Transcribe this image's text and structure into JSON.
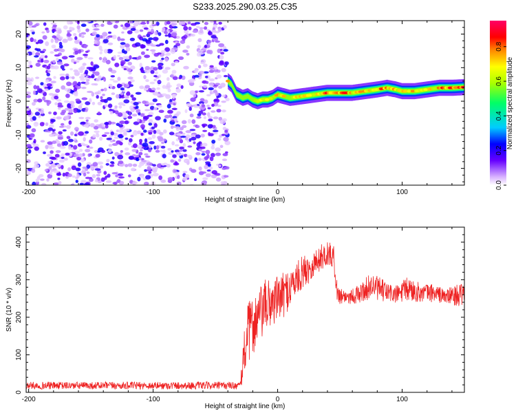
{
  "title": "S233.2025.290.03.25.C35",
  "chart_data": [
    {
      "type": "heatmap",
      "name": "spectrogram",
      "xlabel": "Height of straight line (km)",
      "ylabel": "Frequency (Hz)",
      "xlim": [
        -202,
        150
      ],
      "ylim": [
        -25,
        24
      ],
      "xticks": [
        -200,
        -100,
        0,
        100
      ],
      "xtick_labels": [
        "-200",
        "-100",
        "0",
        "100"
      ],
      "yticks": [
        -20,
        -10,
        0,
        10,
        20
      ],
      "ytick_labels": [
        "-20",
        "-10",
        "0",
        "10",
        "20"
      ],
      "noise_region_x": [
        -202,
        -40
      ],
      "noise_amplitude_range": [
        0.0,
        0.25
      ],
      "ridge": {
        "x": [
          -40,
          -37,
          -33,
          -28,
          -24,
          -20,
          -16,
          -12,
          -8,
          -4,
          0,
          5,
          10,
          20,
          30,
          40,
          50,
          60,
          70,
          80,
          88,
          95,
          100,
          110,
          120,
          130,
          140,
          150
        ],
        "freq": [
          6,
          5,
          2,
          1,
          1.5,
          0.5,
          0,
          0.5,
          0.5,
          1,
          2,
          1.5,
          1,
          1.5,
          2,
          2.5,
          2.5,
          2.5,
          3,
          3.5,
          4,
          3.5,
          3,
          3,
          3.5,
          4,
          4,
          4.2
        ],
        "amplitude": [
          0.8,
          0.5,
          0.55,
          0.5,
          0.45,
          0.6,
          0.7,
          0.75,
          0.7,
          0.65,
          0.8,
          0.75,
          0.6,
          0.85,
          0.7,
          0.9,
          0.9,
          0.85,
          0.8,
          0.85,
          0.9,
          0.8,
          0.75,
          0.8,
          0.7,
          0.85,
          0.95,
          0.9
        ]
      },
      "colorbar": {
        "label": "Normalized spectral amplitude",
        "range": [
          0.0,
          0.95
        ],
        "ticks": [
          0.0,
          0.2,
          0.4,
          0.6,
          0.8
        ],
        "tick_labels": [
          "0.0",
          "0.2",
          "0.4",
          "0.6",
          "0.8"
        ]
      }
    },
    {
      "type": "line",
      "name": "snr",
      "xlabel": "Height of straight line (km)",
      "ylabel": "SNR (10 * v/v)",
      "xlim": [
        -202,
        150
      ],
      "ylim": [
        0,
        440
      ],
      "xticks": [
        -200,
        -100,
        0,
        100
      ],
      "xtick_labels": [
        "-200",
        "-100",
        "0",
        "100"
      ],
      "yticks": [
        0,
        100,
        200,
        300,
        400
      ],
      "ytick_labels": [
        "0",
        "100",
        "200",
        "300",
        "400"
      ],
      "series_color": "#ee2222",
      "envelope": {
        "x": [
          -202,
          -30,
          -27,
          -25,
          -20,
          -15,
          -10,
          -5,
          0,
          5,
          10,
          15,
          20,
          25,
          30,
          35,
          40,
          45,
          48,
          55,
          65,
          75,
          85,
          95,
          105,
          115,
          125,
          135,
          145,
          150
        ],
        "mean": [
          18,
          18,
          100,
          150,
          180,
          200,
          230,
          240,
          250,
          260,
          280,
          300,
          320,
          330,
          345,
          360,
          370,
          360,
          260,
          255,
          260,
          285,
          270,
          260,
          275,
          265,
          265,
          255,
          260,
          255
        ],
        "spread": [
          10,
          10,
          70,
          80,
          80,
          80,
          70,
          70,
          60,
          60,
          55,
          45,
          45,
          40,
          35,
          35,
          35,
          30,
          25,
          20,
          25,
          35,
          30,
          25,
          35,
          25,
          25,
          20,
          30,
          30
        ]
      }
    }
  ]
}
